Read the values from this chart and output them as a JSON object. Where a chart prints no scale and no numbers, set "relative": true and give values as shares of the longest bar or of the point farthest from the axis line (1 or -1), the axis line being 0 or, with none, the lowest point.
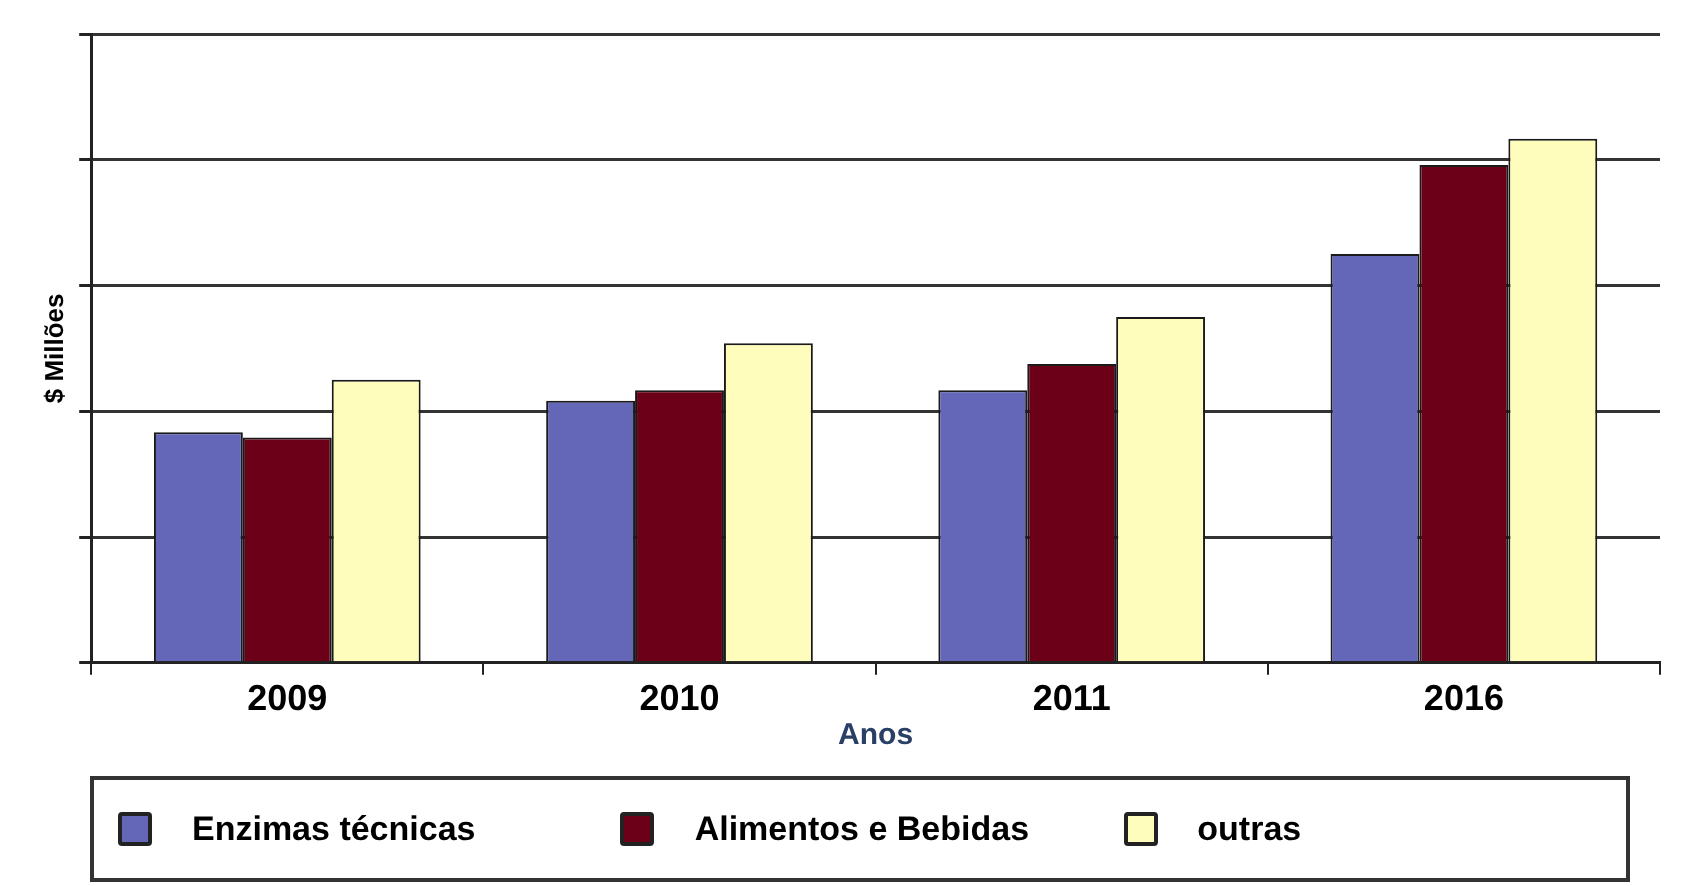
{
  "chart_data": {
    "type": "bar",
    "ylabel": "$ Millões",
    "xlabel": "Anos",
    "categories": [
      "2009",
      "2010",
      "2011",
      "2016"
    ],
    "relative": true,
    "grid": "y",
    "legend": "bottom",
    "series": [
      {
        "name": "Enzimas técnicas",
        "color": "#6466b8",
        "values": [
          0.44,
          0.5,
          0.52,
          0.78
        ]
      },
      {
        "name": "Alimentos e Bebidas",
        "color": "#6b0018",
        "values": [
          0.43,
          0.52,
          0.57,
          0.95
        ]
      },
      {
        "name": "outras",
        "color": "#fffdbb",
        "values": [
          0.54,
          0.61,
          0.66,
          1
        ]
      }
    ]
  }
}
